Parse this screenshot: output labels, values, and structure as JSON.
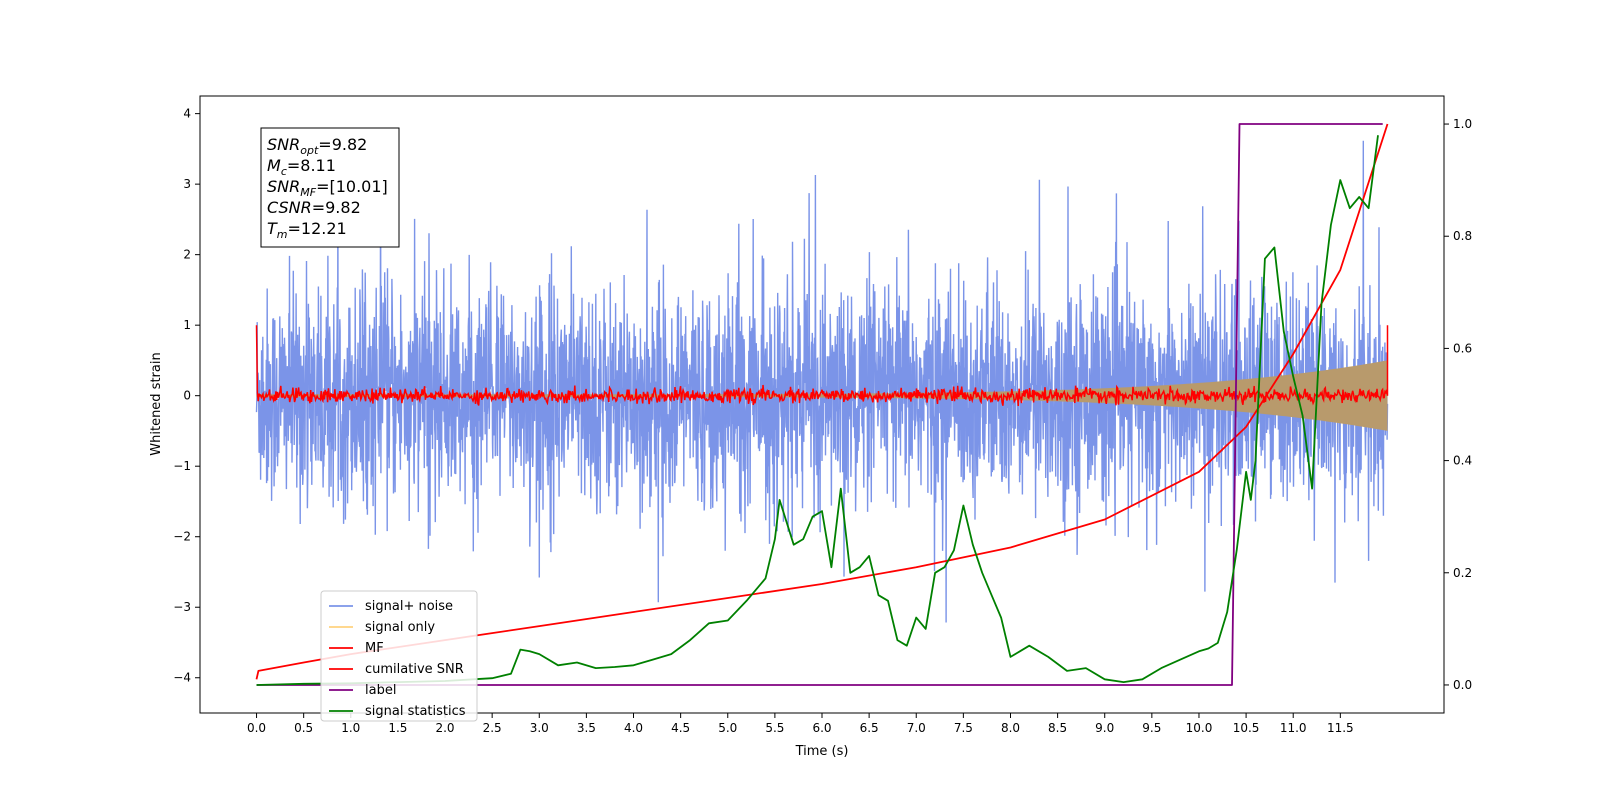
{
  "chart_data": {
    "type": "line",
    "xlabel": "Time (s)",
    "ylabel": "Whitened strain",
    "x_ticks": [
      "0.0",
      "0.5",
      "1.0",
      "1.5",
      "2.0",
      "2.5",
      "3.0",
      "3.5",
      "4.0",
      "4.5",
      "5.0",
      "5.5",
      "6.0",
      "6.5",
      "7.0",
      "7.5",
      "8.0",
      "8.5",
      "9.0",
      "9.5",
      "10.0",
      "10.5",
      "11.0",
      "11.5"
    ],
    "xlim": [
      -0.6,
      12.6
    ],
    "ylim_left": [
      -4.5,
      4.25
    ],
    "ylim_right": [
      -0.05,
      1.05
    ],
    "y_ticks_left": [
      "−4",
      "−3",
      "−2",
      "−1",
      "0",
      "1",
      "2",
      "3",
      "4"
    ],
    "y_ticks_right": [
      "0.0",
      "0.2",
      "0.4",
      "0.6",
      "0.8",
      "1.0"
    ],
    "grid": false,
    "legend_position": "lower-left",
    "annotation": [
      {
        "base": "SNR",
        "sub": "opt",
        "value": "=9.82"
      },
      {
        "base": "M",
        "sub": "c",
        "value": "=8.11"
      },
      {
        "base": "SNR",
        "sub": "MF",
        "value": "=[10.01]"
      },
      {
        "base": "CSNR",
        "sub": "",
        "value": "=9.82"
      },
      {
        "base": "T",
        "sub": "m",
        "value": "=12.21"
      }
    ],
    "series": [
      {
        "name": "signal+ noise",
        "color": "#7b94e8",
        "axis": "left",
        "kind": "noise",
        "x_range": [
          0,
          12.0
        ],
        "std": 0.75,
        "range_approx": [
          -4.1,
          3.85
        ]
      },
      {
        "name": "signal only",
        "color": "#ffd27f",
        "axis": "left",
        "kind": "chirp",
        "x_range": [
          0,
          12.0
        ],
        "amplitude_start": 0.02,
        "amplitude_end": 0.5
      },
      {
        "name": "MF",
        "color": "#ff0000",
        "axis": "left",
        "kind": "noise",
        "x_range": [
          0,
          12.0
        ],
        "std": 0.05,
        "start_value": 1.0,
        "end_value": 1.0
      },
      {
        "name": "cumilative SNR",
        "color": "#ff0000",
        "axis": "right",
        "x": [
          0,
          0.02,
          0.5,
          1,
          2,
          3,
          4,
          5,
          6,
          7,
          8,
          9,
          10,
          10.5,
          11,
          11.5,
          12.0
        ],
        "y": [
          0.01,
          0.025,
          0.04,
          0.055,
          0.08,
          0.105,
          0.13,
          0.155,
          0.18,
          0.21,
          0.245,
          0.295,
          0.38,
          0.46,
          0.59,
          0.74,
          1.0
        ]
      },
      {
        "name": "label",
        "color": "#800080",
        "axis": "right",
        "x": [
          0,
          10.35,
          10.43,
          11.95
        ],
        "y": [
          0.0,
          0.0,
          1.0,
          1.0
        ]
      },
      {
        "name": "signal statistics",
        "color": "#008000",
        "axis": "right",
        "x": [
          0,
          0.5,
          1,
          1.5,
          2,
          2.3,
          2.5,
          2.7,
          2.8,
          2.9,
          3.0,
          3.2,
          3.4,
          3.6,
          3.8,
          4.0,
          4.2,
          4.4,
          4.6,
          4.8,
          5.0,
          5.2,
          5.4,
          5.5,
          5.55,
          5.7,
          5.8,
          5.9,
          6.0,
          6.1,
          6.2,
          6.3,
          6.4,
          6.5,
          6.6,
          6.7,
          6.8,
          6.9,
          7.0,
          7.1,
          7.2,
          7.3,
          7.4,
          7.5,
          7.6,
          7.7,
          7.8,
          7.9,
          8.0,
          8.1,
          8.2,
          8.4,
          8.6,
          8.8,
          9.0,
          9.2,
          9.4,
          9.6,
          9.8,
          10.0,
          10.1,
          10.2,
          10.3,
          10.4,
          10.5,
          10.55,
          10.6,
          10.7,
          10.8,
          10.9,
          11.0,
          11.1,
          11.2,
          11.3,
          11.4,
          11.5,
          11.6,
          11.7,
          11.8,
          11.9
        ],
        "y": [
          0.0,
          0.002,
          0.003,
          0.005,
          0.007,
          0.01,
          0.012,
          0.02,
          0.063,
          0.06,
          0.055,
          0.035,
          0.04,
          0.03,
          0.032,
          0.035,
          0.045,
          0.055,
          0.08,
          0.11,
          0.115,
          0.15,
          0.19,
          0.26,
          0.33,
          0.25,
          0.26,
          0.3,
          0.31,
          0.21,
          0.35,
          0.2,
          0.21,
          0.23,
          0.16,
          0.15,
          0.08,
          0.07,
          0.12,
          0.1,
          0.2,
          0.21,
          0.24,
          0.32,
          0.25,
          0.2,
          0.16,
          0.12,
          0.05,
          0.06,
          0.07,
          0.05,
          0.025,
          0.03,
          0.01,
          0.005,
          0.01,
          0.03,
          0.045,
          0.06,
          0.065,
          0.075,
          0.13,
          0.24,
          0.38,
          0.33,
          0.4,
          0.76,
          0.78,
          0.63,
          0.55,
          0.48,
          0.35,
          0.68,
          0.82,
          0.9,
          0.85,
          0.87,
          0.85,
          0.98
        ]
      }
    ]
  }
}
